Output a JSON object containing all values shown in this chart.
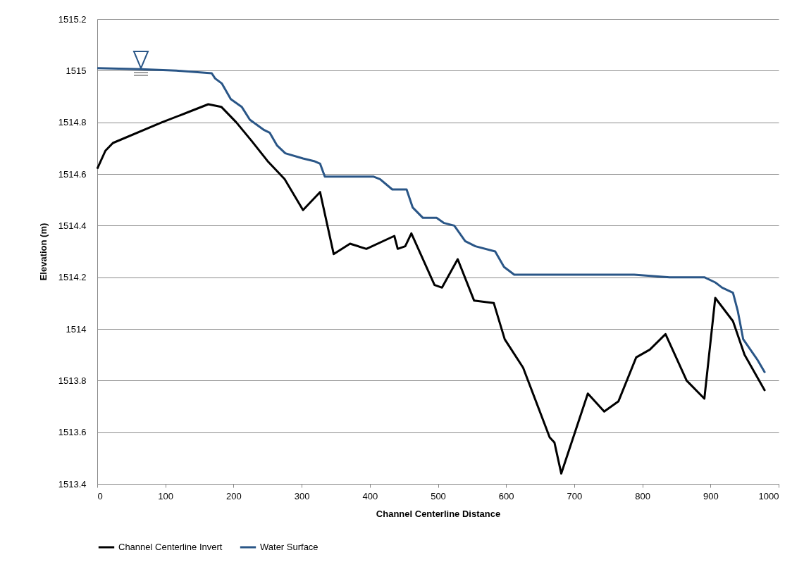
{
  "chart_data": {
    "type": "line",
    "xlabel": "Channel Centerline Distance",
    "ylabel": "Elevation (m)",
    "xlim": [
      0,
      1000
    ],
    "xticks": [
      0,
      100,
      200,
      300,
      400,
      500,
      600,
      700,
      800,
      900,
      1000
    ],
    "ylim": [
      1513.4,
      1515.2
    ],
    "yticks": [
      1513.4,
      1513.6,
      1513.8,
      1514,
      1514.2,
      1514.4,
      1514.6,
      1514.8,
      1515,
      1515.2
    ],
    "grid": "y",
    "legend": "bottom",
    "marker": "none",
    "line_style": "solid",
    "series": [
      {
        "name": "Channel Centerline Invert",
        "color": "#000000",
        "x": [
          0,
          12,
          23,
          95,
          134,
          163,
          182,
          204,
          226,
          250,
          275,
          302,
          327,
          347,
          371,
          395,
          436,
          441,
          452,
          461,
          495,
          506,
          529,
          553,
          582,
          598,
          625,
          664,
          671,
          681,
          720,
          744,
          765,
          791,
          811,
          834,
          865,
          891,
          907,
          933,
          950,
          980
        ],
        "values": [
          1514.62,
          1514.69,
          1514.72,
          1514.8,
          1514.84,
          1514.87,
          1514.86,
          1514.8,
          1514.73,
          1514.65,
          1514.58,
          1514.46,
          1514.53,
          1514.29,
          1514.33,
          1514.31,
          1514.36,
          1514.31,
          1514.32,
          1514.37,
          1514.17,
          1514.16,
          1514.27,
          1514.11,
          1514.1,
          1513.96,
          1513.85,
          1513.58,
          1513.56,
          1513.44,
          1513.75,
          1513.68,
          1513.72,
          1513.89,
          1513.92,
          1513.98,
          1513.8,
          1513.73,
          1514.12,
          1514.03,
          1513.9,
          1513.76
        ]
      },
      {
        "name": "Water Surface",
        "color": "#2a5687",
        "x": [
          0,
          64,
          116,
          168,
          173,
          183,
          196,
          212,
          224,
          245,
          253,
          264,
          276,
          302,
          318,
          327,
          334,
          343,
          405,
          415,
          433,
          454,
          463,
          478,
          498,
          509,
          524,
          540,
          555,
          584,
          597,
          612,
          685,
          788,
          840,
          855,
          891,
          907,
          917,
          933,
          940,
          948,
          969,
          980
        ],
        "values": [
          1515.01,
          1515.006,
          1515,
          1514.99,
          1514.97,
          1514.95,
          1514.89,
          1514.86,
          1514.81,
          1514.77,
          1514.76,
          1514.71,
          1514.68,
          1514.66,
          1514.65,
          1514.64,
          1514.59,
          1514.59,
          1514.59,
          1514.58,
          1514.54,
          1514.54,
          1514.47,
          1514.43,
          1514.43,
          1514.41,
          1514.4,
          1514.34,
          1514.32,
          1514.3,
          1514.24,
          1514.21,
          1514.21,
          1514.21,
          1514.2,
          1514.2,
          1514.2,
          1514.18,
          1514.16,
          1514.14,
          1514.07,
          1513.96,
          1513.88,
          1513.83
        ]
      }
    ]
  }
}
